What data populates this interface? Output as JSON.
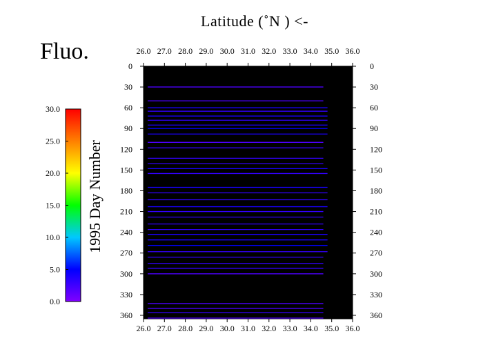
{
  "title": "Fluo.",
  "top_label": "Latitude  (˚N )  <-",
  "ylabel": "1995  Day Number",
  "colorbar": {
    "ticks": [
      "0.0",
      "5.0",
      "10.0",
      "15.0",
      "20.0",
      "25.0",
      "30.0"
    ],
    "range": [
      0,
      30
    ]
  },
  "colors": {
    "plot_background": "#000000",
    "colormap": [
      "#8000ff",
      "#0000ff",
      "#00c8ff",
      "#00ff00",
      "#ffff00",
      "#ff8000",
      "#ff0000"
    ]
  },
  "chart_data": {
    "type": "heatmap",
    "title": "Fluo.",
    "xlabel": "Latitude  (˚N )  <-",
    "ylabel": "1995  Day Number",
    "xlim": [
      26.0,
      36.0
    ],
    "ylim": [
      0,
      365
    ],
    "x_ticks": [
      "26.0",
      "27.0",
      "28.0",
      "29.0",
      "30.0",
      "31.0",
      "32.0",
      "33.0",
      "34.0",
      "35.0",
      "36.0"
    ],
    "y_ticks": [
      "0",
      "30",
      "60",
      "90",
      "120",
      "150",
      "180",
      "210",
      "240",
      "270",
      "300",
      "330",
      "360"
    ],
    "grid": false,
    "series": [
      {
        "day": 30,
        "x": [
          26.2,
          34.6
        ],
        "value": 2
      },
      {
        "day": 50,
        "x": [
          26.2,
          34.6
        ],
        "value": 2
      },
      {
        "day": 60,
        "x": [
          26.2,
          34.8
        ],
        "value": 4
      },
      {
        "day": 65,
        "x": [
          26.2,
          34.8
        ],
        "value": 3
      },
      {
        "day": 72,
        "x": [
          26.2,
          34.8
        ],
        "value": 4
      },
      {
        "day": 78,
        "x": [
          26.2,
          34.8
        ],
        "value": 3
      },
      {
        "day": 85,
        "x": [
          26.2,
          34.8
        ],
        "value": 4
      },
      {
        "day": 90,
        "x": [
          26.2,
          34.8
        ],
        "value": 5
      },
      {
        "day": 98,
        "x": [
          26.2,
          34.8
        ],
        "value": 4
      },
      {
        "day": 110,
        "x": [
          26.2,
          34.6
        ],
        "value": 2
      },
      {
        "day": 118,
        "x": [
          26.2,
          34.6
        ],
        "value": 3
      },
      {
        "day": 133,
        "x": [
          26.2,
          34.6
        ],
        "value": 3
      },
      {
        "day": 141,
        "x": [
          26.2,
          34.6
        ],
        "value": 3
      },
      {
        "day": 148,
        "x": [
          26.2,
          34.8
        ],
        "value": 4
      },
      {
        "day": 155,
        "x": [
          26.2,
          34.8
        ],
        "value": 3
      },
      {
        "day": 175,
        "x": [
          26.2,
          34.8
        ],
        "value": 4
      },
      {
        "day": 183,
        "x": [
          26.2,
          34.8
        ],
        "value": 3
      },
      {
        "day": 193,
        "x": [
          26.2,
          34.8
        ],
        "value": 3
      },
      {
        "day": 203,
        "x": [
          26.2,
          34.8
        ],
        "value": 4
      },
      {
        "day": 210,
        "x": [
          26.2,
          34.6
        ],
        "value": 3
      },
      {
        "day": 218,
        "x": [
          26.2,
          34.6
        ],
        "value": 3
      },
      {
        "day": 228,
        "x": [
          26.2,
          34.6
        ],
        "value": 3
      },
      {
        "day": 236,
        "x": [
          26.2,
          34.6
        ],
        "value": 3
      },
      {
        "day": 243,
        "x": [
          26.2,
          34.8
        ],
        "value": 4
      },
      {
        "day": 251,
        "x": [
          26.2,
          34.8
        ],
        "value": 4
      },
      {
        "day": 259,
        "x": [
          26.2,
          34.8
        ],
        "value": 5
      },
      {
        "day": 268,
        "x": [
          26.2,
          34.8
        ],
        "value": 3
      },
      {
        "day": 276,
        "x": [
          26.2,
          34.6
        ],
        "value": 3
      },
      {
        "day": 285,
        "x": [
          26.2,
          34.6
        ],
        "value": 3
      },
      {
        "day": 292,
        "x": [
          26.2,
          34.6
        ],
        "value": 3
      },
      {
        "day": 300,
        "x": [
          26.2,
          34.6
        ],
        "value": 2
      },
      {
        "day": 343,
        "x": [
          26.2,
          34.6
        ],
        "value": 2
      },
      {
        "day": 350,
        "x": [
          26.2,
          34.6
        ],
        "value": 2
      },
      {
        "day": 356,
        "x": [
          26.2,
          34.6
        ],
        "value": 3
      },
      {
        "day": 364,
        "x": [
          26.2,
          34.6
        ],
        "value": 2
      }
    ]
  }
}
